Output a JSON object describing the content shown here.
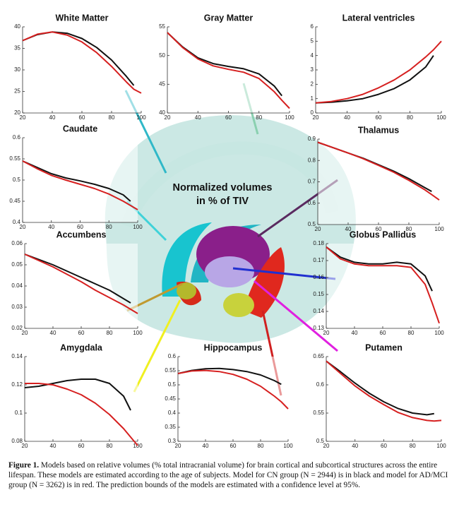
{
  "chart_data": [
    {
      "type": "line",
      "title": "White Matter",
      "x": [
        20,
        30,
        40,
        50,
        60,
        70,
        80,
        90,
        95,
        100
      ],
      "xlim": [
        20,
        100
      ],
      "xticks": [
        20,
        40,
        60,
        80,
        100
      ],
      "ylim": [
        20,
        40
      ],
      "yticks": [
        20,
        25,
        30,
        35,
        40
      ],
      "series": [
        {
          "color": "#111111",
          "values": [
            36.8,
            38.2,
            38.8,
            38.5,
            37.3,
            35.2,
            32.3,
            28.5,
            26.4,
            null
          ]
        },
        {
          "color": "#d62020",
          "values": [
            36.8,
            38.3,
            38.8,
            38.1,
            36.5,
            34.0,
            30.8,
            27.2,
            25.5,
            24.6
          ]
        }
      ]
    },
    {
      "type": "line",
      "title": "Gray Matter",
      "x": [
        20,
        30,
        40,
        50,
        60,
        70,
        80,
        90,
        95,
        100
      ],
      "xlim": [
        20,
        100
      ],
      "xticks": [
        20,
        40,
        60,
        80,
        100
      ],
      "ylim": [
        40,
        55
      ],
      "yticks": [
        40,
        45,
        50,
        55
      ],
      "series": [
        {
          "color": "#111111",
          "values": [
            54,
            51.5,
            49.6,
            48.6,
            48.1,
            47.7,
            46.8,
            44.7,
            43.0,
            null
          ]
        },
        {
          "color": "#d62020",
          "values": [
            54,
            51.4,
            49.4,
            48.2,
            47.6,
            47.1,
            46.0,
            43.7,
            42.2,
            40.8
          ]
        }
      ]
    },
    {
      "type": "line",
      "title": "Lateral ventricles",
      "x": [
        20,
        30,
        40,
        50,
        60,
        70,
        80,
        90,
        95,
        100
      ],
      "xlim": [
        20,
        100
      ],
      "xticks": [
        20,
        40,
        60,
        80,
        100
      ],
      "ylim": [
        0,
        6
      ],
      "yticks": [
        0,
        1,
        2,
        3,
        4,
        5,
        6
      ],
      "series": [
        {
          "color": "#111111",
          "values": [
            0.7,
            0.75,
            0.85,
            1.0,
            1.3,
            1.7,
            2.3,
            3.2,
            4.0,
            null
          ]
        },
        {
          "color": "#d62020",
          "values": [
            0.7,
            0.8,
            1.0,
            1.3,
            1.75,
            2.3,
            3.0,
            3.9,
            4.4,
            5.0
          ]
        }
      ]
    },
    {
      "type": "line",
      "title": "Caudate",
      "x": [
        20,
        30,
        40,
        50,
        60,
        70,
        80,
        90,
        95,
        100
      ],
      "xlim": [
        20,
        100
      ],
      "xticks": [
        20,
        40,
        60,
        80,
        100
      ],
      "ylim": [
        0.4,
        0.6
      ],
      "yticks": [
        0.4,
        0.45,
        0.5,
        0.55,
        0.6
      ],
      "series": [
        {
          "color": "#111111",
          "values": [
            0.545,
            0.53,
            0.515,
            0.505,
            0.498,
            0.49,
            0.48,
            0.465,
            0.45,
            null
          ]
        },
        {
          "color": "#d62020",
          "values": [
            0.545,
            0.527,
            0.511,
            0.5,
            0.49,
            0.48,
            0.467,
            0.45,
            0.44,
            0.43
          ]
        }
      ]
    },
    {
      "type": "line",
      "title": "Thalamus",
      "x": [
        20,
        30,
        40,
        50,
        60,
        70,
        80,
        90,
        95,
        100
      ],
      "xlim": [
        20,
        100
      ],
      "xticks": [
        20,
        40,
        60,
        80,
        100
      ],
      "ylim": [
        0.5,
        0.9
      ],
      "yticks": [
        0.5,
        0.6,
        0.7,
        0.8,
        0.9
      ],
      "series": [
        {
          "color": "#111111",
          "values": [
            0.885,
            0.86,
            0.835,
            0.81,
            0.78,
            0.75,
            0.715,
            0.675,
            0.655,
            null
          ]
        },
        {
          "color": "#d62020",
          "values": [
            0.885,
            0.86,
            0.835,
            0.808,
            0.777,
            0.745,
            0.707,
            0.665,
            0.64,
            0.615
          ]
        }
      ]
    },
    {
      "type": "line",
      "title": "Accumbens",
      "x": [
        20,
        30,
        40,
        50,
        60,
        70,
        80,
        90,
        95,
        100
      ],
      "xlim": [
        20,
        100
      ],
      "xticks": [
        20,
        40,
        60,
        80,
        100
      ],
      "ylim": [
        0.02,
        0.06
      ],
      "yticks": [
        0.02,
        0.03,
        0.04,
        0.05,
        0.06
      ],
      "series": [
        {
          "color": "#111111",
          "values": [
            0.055,
            0.0525,
            0.05,
            0.047,
            0.044,
            0.041,
            0.038,
            0.034,
            0.032,
            null
          ]
        },
        {
          "color": "#d62020",
          "values": [
            0.055,
            0.052,
            0.049,
            0.0455,
            0.042,
            0.038,
            0.0345,
            0.031,
            0.029,
            0.027
          ]
        }
      ]
    },
    {
      "type": "line",
      "title": "Globus Pallidus",
      "x": [
        20,
        30,
        40,
        50,
        60,
        70,
        80,
        90,
        95,
        100
      ],
      "xlim": [
        20,
        100
      ],
      "xticks": [
        20,
        40,
        60,
        80,
        100
      ],
      "ylim": [
        0.13,
        0.18
      ],
      "yticks": [
        0.13,
        0.14,
        0.15,
        0.16,
        0.17,
        0.18
      ],
      "series": [
        {
          "color": "#111111",
          "values": [
            0.178,
            0.172,
            0.169,
            0.168,
            0.168,
            0.169,
            0.168,
            0.161,
            0.152,
            null
          ]
        },
        {
          "color": "#d62020",
          "values": [
            0.178,
            0.171,
            0.168,
            0.167,
            0.167,
            0.167,
            0.166,
            0.156,
            0.145,
            0.133
          ]
        }
      ]
    },
    {
      "type": "line",
      "title": "Amygdala",
      "x": [
        20,
        30,
        40,
        50,
        60,
        70,
        80,
        90,
        95,
        100
      ],
      "xlim": [
        20,
        100
      ],
      "xticks": [
        20,
        40,
        60,
        80,
        100
      ],
      "ylim": [
        0.08,
        0.14
      ],
      "yticks": [
        0.08,
        0.1,
        0.12,
        0.14
      ],
      "series": [
        {
          "color": "#111111",
          "values": [
            0.118,
            0.119,
            0.121,
            0.123,
            0.124,
            0.124,
            0.121,
            0.112,
            0.102,
            null
          ]
        },
        {
          "color": "#d62020",
          "values": [
            0.121,
            0.121,
            0.12,
            0.117,
            0.113,
            0.107,
            0.099,
            0.089,
            0.083,
            0.077
          ]
        }
      ]
    },
    {
      "type": "line",
      "title": "Hippocampus",
      "x": [
        20,
        30,
        40,
        50,
        60,
        70,
        80,
        90,
        95,
        100
      ],
      "xlim": [
        20,
        100
      ],
      "xticks": [
        20,
        40,
        60,
        80,
        100
      ],
      "ylim": [
        0.3,
        0.6
      ],
      "yticks": [
        0.3,
        0.35,
        0.4,
        0.45,
        0.5,
        0.55,
        0.6
      ],
      "series": [
        {
          "color": "#111111",
          "values": [
            0.54,
            0.551,
            0.557,
            0.558,
            0.554,
            0.547,
            0.535,
            0.515,
            0.502,
            null
          ]
        },
        {
          "color": "#d62020",
          "values": [
            0.54,
            0.549,
            0.551,
            0.547,
            0.537,
            0.52,
            0.495,
            0.46,
            0.44,
            0.415
          ]
        }
      ]
    },
    {
      "type": "line",
      "title": "Putamen",
      "x": [
        20,
        30,
        40,
        50,
        60,
        70,
        80,
        90,
        95,
        100
      ],
      "xlim": [
        20,
        100
      ],
      "xticks": [
        20,
        40,
        60,
        80,
        100
      ],
      "ylim": [
        0.5,
        0.65
      ],
      "yticks": [
        0.5,
        0.55,
        0.6,
        0.65
      ],
      "series": [
        {
          "color": "#111111",
          "values": [
            0.642,
            0.623,
            0.603,
            0.585,
            0.57,
            0.558,
            0.55,
            0.547,
            0.549,
            null
          ]
        },
        {
          "color": "#d62020",
          "values": [
            0.642,
            0.62,
            0.598,
            0.58,
            0.565,
            0.551,
            0.542,
            0.537,
            0.536,
            0.537
          ]
        }
      ]
    }
  ],
  "center_label": [
    "Normalized volumes",
    "in % of TIV"
  ],
  "caption": {
    "label": "Figure 1.",
    "text": "Models based on relative volumes (% total intracranial volume) for brain cortical and subcortical structures across the entire lifespan. These models are estimated according to the age of subjects. Model for CN group (N = 2944) is in black and model for AD/MCI group (N = 3262) is in red. The prediction bounds of the models are estimated with a confidence level at 95%."
  }
}
